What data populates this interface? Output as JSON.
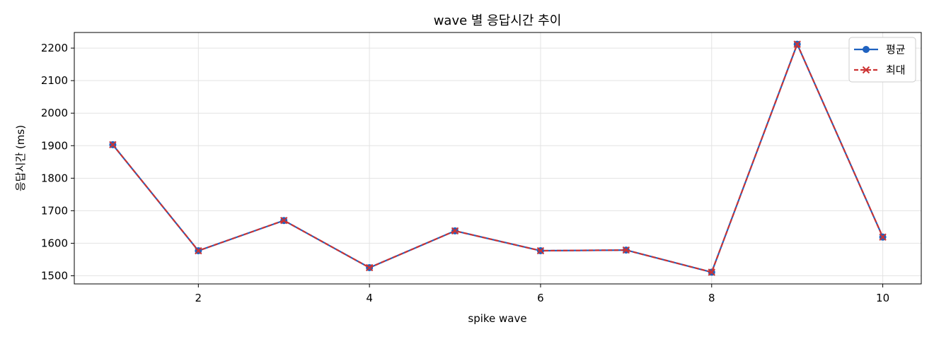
{
  "chart_data": {
    "type": "line",
    "title": "wave 별 응답시간 추이",
    "xlabel": "spike wave",
    "ylabel": "응답시간 (ms)",
    "x": [
      1,
      2,
      3,
      4,
      5,
      6,
      7,
      8,
      9,
      10
    ],
    "xlim": [
      0.55,
      10.45
    ],
    "ylim": [
      1475,
      2248
    ],
    "xticks": [
      2,
      4,
      6,
      8,
      10
    ],
    "yticks": [
      1500,
      1600,
      1700,
      1800,
      1900,
      2000,
      2100,
      2200
    ],
    "grid": true,
    "legend_position": "top-right",
    "series": [
      {
        "name": "평균",
        "values": [
          1903,
          1577,
          1670,
          1525,
          1638,
          1577,
          1579,
          1511,
          2212,
          1619
        ],
        "color": "#1f62c0",
        "line_style": "solid",
        "marker": "circle"
      },
      {
        "name": "최대",
        "values": [
          1903,
          1577,
          1670,
          1525,
          1638,
          1577,
          1579,
          1511,
          2212,
          1619
        ],
        "color": "#cc3333",
        "line_style": "dashed",
        "marker": "x"
      }
    ]
  }
}
